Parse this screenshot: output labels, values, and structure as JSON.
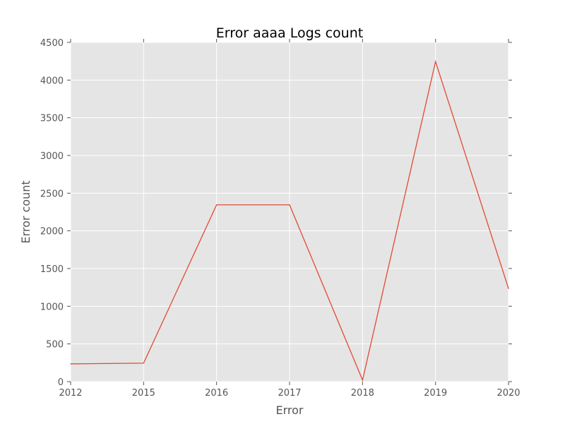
{
  "chart_data": {
    "type": "line",
    "title": "Error aaaa Logs count",
    "xlabel": "Error",
    "ylabel": "Error count",
    "categories": [
      "2012",
      "2015",
      "2016",
      "2017",
      "2018",
      "2019",
      "2020"
    ],
    "series": [
      {
        "values": [
          235,
          245,
          2345,
          2345,
          20,
          4245,
          1235
        ],
        "color": "#E24A33"
      }
    ],
    "ylim": [
      0,
      4500
    ],
    "yticks": [
      0,
      500,
      1000,
      1500,
      2000,
      2500,
      3000,
      3500,
      4000,
      4500
    ],
    "grid": true,
    "legend": "none",
    "background_color": "#E5E5E5",
    "grid_color": "#FFFFFF"
  }
}
